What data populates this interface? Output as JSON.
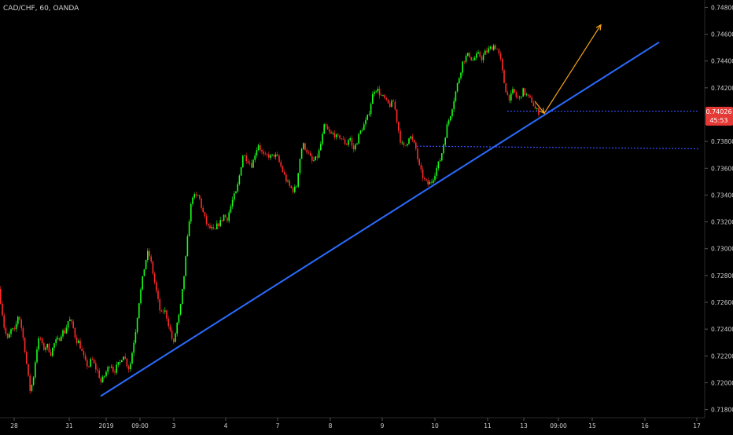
{
  "chart_data": {
    "type": "candlestick",
    "title": "CAD/CHF, 60, OANDA",
    "symbol": "CAD/CHF",
    "interval": "60",
    "source": "OANDA",
    "colors": {
      "background": "#000000",
      "up": "#1aff1a",
      "down": "#ff2a2a",
      "trendline": "#2a6cff",
      "levels": "#3a4cff",
      "projection": "#f5a31a",
      "axis_text": "#d0d0d0",
      "price_badge": "#e53935"
    },
    "y_axis": {
      "ylim": [
        0.7178,
        0.7482
      ],
      "ticks": [
        "0.74800",
        "0.74600",
        "0.74400",
        "0.74200",
        "0.74000",
        "0.73800",
        "0.73600",
        "0.73400",
        "0.73200",
        "0.73000",
        "0.72800",
        "0.72600",
        "0.72400",
        "0.72200",
        "0.72000",
        "0.71800"
      ]
    },
    "x_axis": {
      "ticks": [
        "28",
        "31",
        "2019",
        "09:00",
        "3",
        "4",
        "7",
        "8",
        "9",
        "10",
        "11",
        "13",
        "09:00",
        "15",
        "16",
        "17"
      ]
    },
    "current_price": "0.74026",
    "countdown": "45:53",
    "price_path": [
      [
        0,
        0.727
      ],
      [
        3,
        0.7258
      ],
      [
        7,
        0.724
      ],
      [
        11,
        0.7232
      ],
      [
        16,
        0.724
      ],
      [
        20,
        0.7238
      ],
      [
        25,
        0.7252
      ],
      [
        29,
        0.724
      ],
      [
        33,
        0.7225
      ],
      [
        37,
        0.7205
      ],
      [
        40,
        0.7193
      ],
      [
        44,
        0.7205
      ],
      [
        48,
        0.7225
      ],
      [
        52,
        0.7235
      ],
      [
        56,
        0.7225
      ],
      [
        61,
        0.7228
      ],
      [
        66,
        0.7222
      ],
      [
        71,
        0.723
      ],
      [
        76,
        0.7232
      ],
      [
        80,
        0.7238
      ],
      [
        84,
        0.7238
      ],
      [
        89,
        0.7248
      ],
      [
        94,
        0.7242
      ],
      [
        98,
        0.7232
      ],
      [
        102,
        0.723
      ],
      [
        106,
        0.7222
      ],
      [
        110,
        0.7215
      ],
      [
        114,
        0.7212
      ],
      [
        118,
        0.7218
      ],
      [
        122,
        0.7212
      ],
      [
        126,
        0.7208
      ],
      [
        130,
        0.72
      ],
      [
        134,
        0.7205
      ],
      [
        138,
        0.721
      ],
      [
        142,
        0.7215
      ],
      [
        146,
        0.7208
      ],
      [
        150,
        0.7212
      ],
      [
        154,
        0.7215
      ],
      [
        158,
        0.7222
      ],
      [
        162,
        0.7215
      ],
      [
        166,
        0.721
      ],
      [
        170,
        0.7225
      ],
      [
        174,
        0.724
      ],
      [
        178,
        0.726
      ],
      [
        182,
        0.7275
      ],
      [
        186,
        0.729
      ],
      [
        190,
        0.7298
      ],
      [
        194,
        0.7288
      ],
      [
        198,
        0.7275
      ],
      [
        202,
        0.7262
      ],
      [
        206,
        0.725
      ],
      [
        210,
        0.7255
      ],
      [
        214,
        0.7248
      ],
      [
        218,
        0.7238
      ],
      [
        222,
        0.7228
      ],
      [
        226,
        0.7243
      ],
      [
        230,
        0.7252
      ],
      [
        234,
        0.7272
      ],
      [
        238,
        0.7295
      ],
      [
        242,
        0.7322
      ],
      [
        246,
        0.734
      ],
      [
        250,
        0.7338
      ],
      [
        254,
        0.734
      ],
      [
        258,
        0.733
      ],
      [
        262,
        0.7322
      ],
      [
        266,
        0.7316
      ],
      [
        270,
        0.7315
      ],
      [
        274,
        0.7312
      ],
      [
        278,
        0.7318
      ],
      [
        282,
        0.732
      ],
      [
        286,
        0.7325
      ],
      [
        290,
        0.7322
      ],
      [
        294,
        0.733
      ],
      [
        298,
        0.7338
      ],
      [
        302,
        0.7342
      ],
      [
        306,
        0.7355
      ],
      [
        310,
        0.737
      ],
      [
        314,
        0.7368
      ],
      [
        318,
        0.7365
      ],
      [
        322,
        0.7362
      ],
      [
        326,
        0.7372
      ],
      [
        330,
        0.7378
      ],
      [
        334,
        0.7372
      ],
      [
        338,
        0.7368
      ],
      [
        342,
        0.737
      ],
      [
        346,
        0.7368
      ],
      [
        350,
        0.737
      ],
      [
        354,
        0.7368
      ],
      [
        358,
        0.7362
      ],
      [
        362,
        0.7356
      ],
      [
        366,
        0.735
      ],
      [
        370,
        0.7346
      ],
      [
        374,
        0.7344
      ],
      [
        378,
        0.7345
      ],
      [
        382,
        0.7365
      ],
      [
        386,
        0.7378
      ],
      [
        390,
        0.7375
      ],
      [
        394,
        0.737
      ],
      [
        398,
        0.7365
      ],
      [
        402,
        0.7366
      ],
      [
        406,
        0.737
      ],
      [
        410,
        0.738
      ],
      [
        414,
        0.7392
      ],
      [
        418,
        0.7388
      ],
      [
        422,
        0.7385
      ],
      [
        426,
        0.7386
      ],
      [
        430,
        0.7382
      ],
      [
        434,
        0.7384
      ],
      [
        438,
        0.738
      ],
      [
        442,
        0.7378
      ],
      [
        446,
        0.7384
      ],
      [
        450,
        0.7373
      ],
      [
        454,
        0.7378
      ],
      [
        458,
        0.7385
      ],
      [
        462,
        0.739
      ],
      [
        466,
        0.7394
      ],
      [
        470,
        0.74
      ],
      [
        474,
        0.7412
      ],
      [
        478,
        0.742
      ],
      [
        482,
        0.7418
      ],
      [
        486,
        0.7414
      ],
      [
        490,
        0.7412
      ],
      [
        494,
        0.7408
      ],
      [
        498,
        0.7407
      ],
      [
        502,
        0.741
      ],
      [
        506,
        0.7396
      ],
      [
        510,
        0.7382
      ],
      [
        514,
        0.7375
      ],
      [
        518,
        0.7378
      ],
      [
        522,
        0.7385
      ],
      [
        526,
        0.738
      ],
      [
        530,
        0.7375
      ],
      [
        534,
        0.7362
      ],
      [
        538,
        0.7355
      ],
      [
        542,
        0.735
      ],
      [
        546,
        0.7348
      ],
      [
        550,
        0.735
      ],
      [
        554,
        0.7356
      ],
      [
        558,
        0.7362
      ],
      [
        562,
        0.7368
      ],
      [
        566,
        0.738
      ],
      [
        570,
        0.7392
      ],
      [
        574,
        0.74
      ],
      [
        578,
        0.741
      ],
      [
        582,
        0.742
      ],
      [
        586,
        0.743
      ],
      [
        590,
        0.744
      ],
      [
        594,
        0.7443
      ],
      [
        598,
        0.7445
      ],
      [
        602,
        0.744
      ],
      [
        606,
        0.7443
      ],
      [
        610,
        0.7445
      ],
      [
        614,
        0.7442
      ],
      [
        618,
        0.7446
      ],
      [
        622,
        0.7448
      ],
      [
        626,
        0.745
      ],
      [
        630,
        0.7452
      ],
      [
        634,
        0.7448
      ],
      [
        638,
        0.744
      ],
      [
        642,
        0.7425
      ],
      [
        646,
        0.7415
      ],
      [
        650,
        0.7412
      ],
      [
        654,
        0.7418
      ],
      [
        658,
        0.7413
      ],
      [
        662,
        0.7412
      ],
      [
        666,
        0.7418
      ],
      [
        670,
        0.7415
      ],
      [
        674,
        0.7412
      ],
      [
        678,
        0.741
      ],
      [
        682,
        0.7404
      ],
      [
        686,
        0.7402
      ]
    ],
    "annotations": {
      "trendline": {
        "from": [
          128,
          0.719
        ],
        "to": [
          838,
          0.7454
        ]
      },
      "level_lines": [
        {
          "from": [
            645,
            0.74026
          ],
          "to": [
            888,
            0.74026
          ]
        },
        {
          "from": [
            530,
            0.73765
          ],
          "to": [
            888,
            0.73745
          ]
        }
      ],
      "projection": [
        [
          680,
          0.741
        ],
        [
          692,
          0.7401
        ],
        [
          764,
          0.7467
        ]
      ]
    }
  }
}
